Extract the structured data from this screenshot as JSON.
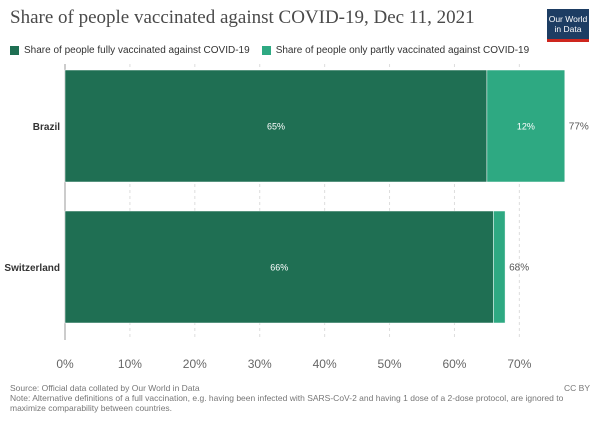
{
  "header": {
    "title": "Share of people vaccinated against COVID-19, Dec 11, 2021",
    "logo_line1": "Our World",
    "logo_line2": "in Data"
  },
  "chart_data": {
    "type": "bar",
    "orientation": "horizontal",
    "stacked": true,
    "title": "Share of people vaccinated against COVID-19, Dec 11, 2021",
    "categories": [
      "Brazil",
      "Switzerland"
    ],
    "series": [
      {
        "name": "Share of people fully vaccinated against COVID-19",
        "values": [
          65,
          66
        ],
        "labels": [
          "65%",
          "66%"
        ],
        "color": "#1f6f53"
      },
      {
        "name": "Share of people only partly vaccinated against COVID-19",
        "values": [
          12,
          1.8
        ],
        "labels": [
          "12%",
          ""
        ],
        "color": "#2ea982"
      }
    ],
    "totals": [
      77,
      68
    ],
    "total_labels": [
      "77%",
      "68%"
    ],
    "xlim": [
      0,
      77.8
    ],
    "xticks": [
      0,
      10,
      20,
      30,
      40,
      50,
      60,
      70
    ],
    "xtick_labels": [
      "0%",
      "10%",
      "20%",
      "30%",
      "40%",
      "50%",
      "60%",
      "70%"
    ],
    "grid": true,
    "legend_position": "top"
  },
  "footer": {
    "source": "Source: Official data collated by Our World in Data",
    "note": "Note: Alternative definitions of a full vaccination, e.g. having been infected with SARS-CoV-2 and having 1 dose of a 2-dose protocol, are ignored to maximize comparability between countries.",
    "license": "CC BY"
  }
}
